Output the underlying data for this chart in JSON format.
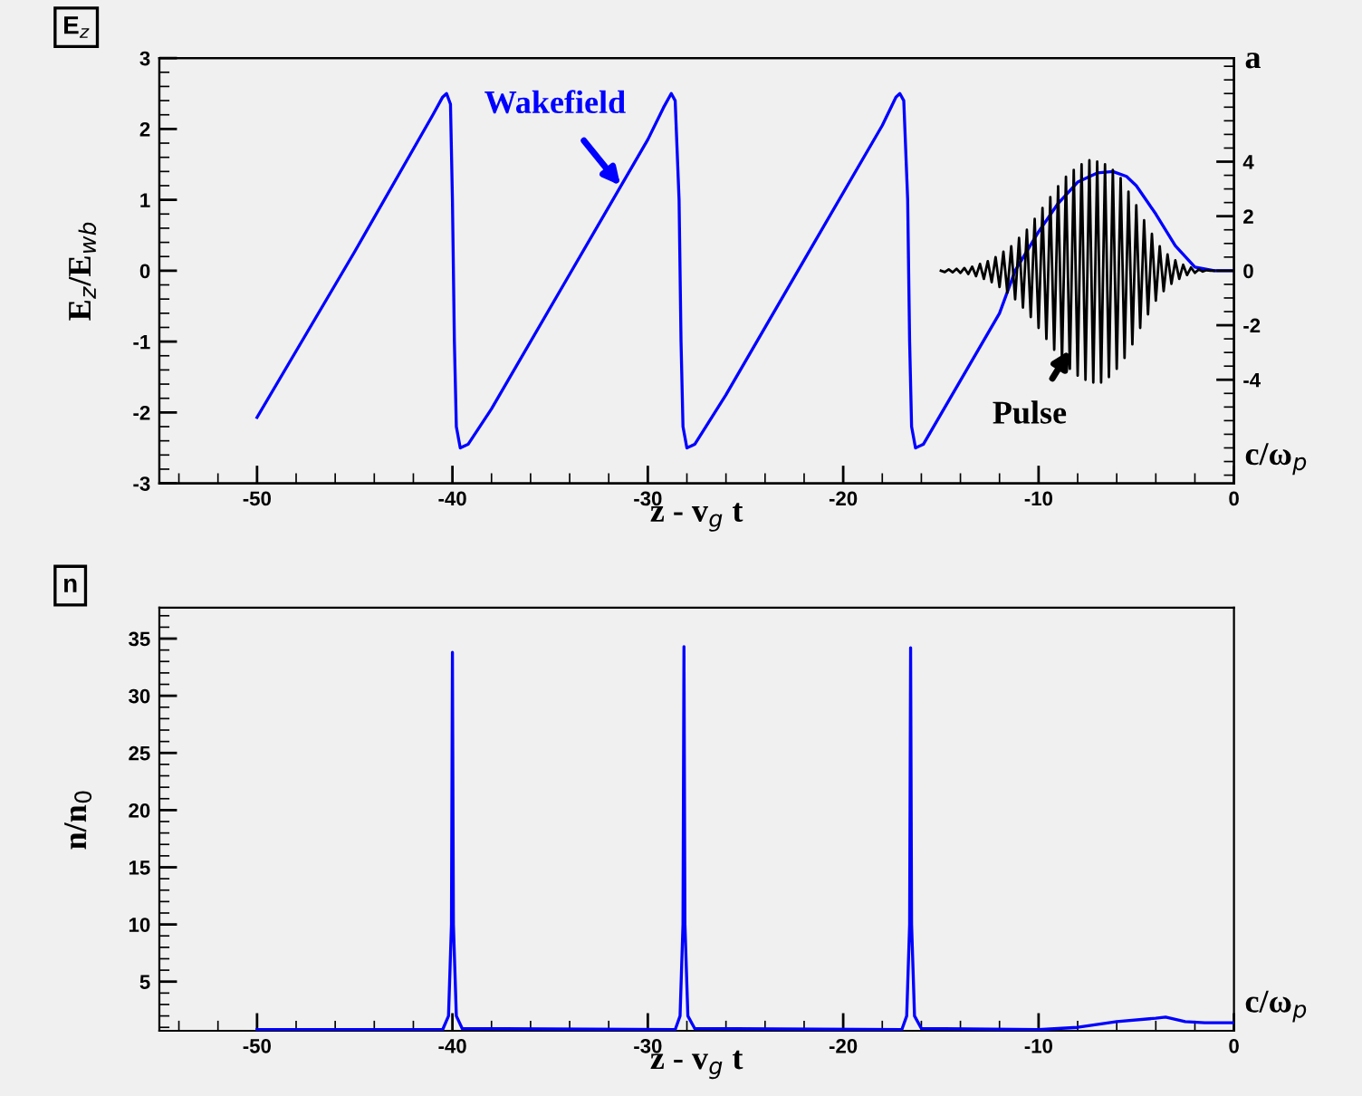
{
  "chart_data": [
    {
      "type": "line",
      "title": "E$_{z}$",
      "xlabel": "z - v$_{g}$ t",
      "ylabel": "E$_{z}$/E$_{wb}$",
      "y2label": "a",
      "xlim": [
        -55,
        0
      ],
      "xticks": [
        -50,
        -40,
        -30,
        -20,
        -10,
        0
      ],
      "ylim": [
        -3,
        3
      ],
      "yticks": [
        -3,
        -2,
        -1,
        0,
        1,
        2,
        3
      ],
      "y2lim": [
        -7.8,
        7.8
      ],
      "y2ticks": [
        -4,
        -2,
        0,
        2,
        4
      ],
      "annotations": [
        "c/ω$_{p}$",
        {
          "text": "Wakefield",
          "x": -31.4,
          "y": 1.2
        },
        {
          "text": "Pulse",
          "x": -8.4,
          "y": -1.12
        }
      ],
      "series": [
        {
          "color": "#0000ff",
          "x": [
            -50,
            -45,
            -41,
            -40.5,
            -40.3,
            -40.1,
            -40.0,
            -39.9,
            -39.8,
            -39.6,
            -39.2,
            -38,
            -34,
            -30,
            -29.2,
            -28.8,
            -28.6,
            -28.4,
            -28.3,
            -28.2,
            -28.0,
            -27.6,
            -26,
            -22,
            -18,
            -17.3,
            -17.1,
            -16.9,
            -16.7,
            -16.6,
            -16.5,
            -16.3,
            -15.9,
            -14,
            -12,
            -11.2,
            -10,
            -9,
            -8,
            -7,
            -6.2,
            -5.5,
            -5,
            -4,
            -3,
            -2,
            -1,
            0
          ],
          "values": [
            -2.07,
            0.27,
            2.2,
            2.45,
            2.5,
            2.35,
            1.0,
            -1.0,
            -2.2,
            -2.5,
            -2.45,
            -1.95,
            -0.05,
            1.85,
            2.3,
            2.5,
            2.4,
            1.0,
            -1.0,
            -2.2,
            -2.5,
            -2.45,
            -1.75,
            0.15,
            2.05,
            2.45,
            2.5,
            2.4,
            1.0,
            -1.0,
            -2.2,
            -2.5,
            -2.45,
            -1.55,
            -0.6,
            0,
            0.55,
            0.95,
            1.25,
            1.38,
            1.4,
            1.33,
            1.2,
            0.8,
            0.35,
            0.05,
            0,
            0
          ]
        },
        {
          "color": "#000000",
          "axis": "y2",
          "x": [
            -15,
            -14.8,
            -14.6,
            -14.4,
            -14.2,
            -14.0,
            -13.8,
            -13.6,
            -13.4,
            -13.2,
            -13.0,
            -12.8,
            -12.6,
            -12.4,
            -12.2,
            -12.0,
            -11.8,
            -11.6,
            -11.4,
            -11.2,
            -11.0,
            -10.8,
            -10.6,
            -10.4,
            -10.2,
            -10.0,
            -9.8,
            -9.6,
            -9.4,
            -9.2,
            -9.0,
            -8.8,
            -8.6,
            -8.4,
            -8.2,
            -8.0,
            -7.8,
            -7.6,
            -7.4,
            -7.2,
            -7.0,
            -6.8,
            -6.6,
            -6.4,
            -6.2,
            -6.0,
            -5.8,
            -5.6,
            -5.4,
            -5.2,
            -5.0,
            -4.8,
            -4.6,
            -4.4,
            -4.2,
            -4.0,
            -3.8,
            -3.6,
            -3.4,
            -3.2,
            -3.0,
            -2.8,
            -2.6,
            -2.4,
            -2.2,
            -2.0,
            -1.8,
            -1.6,
            -1.4,
            -1.2,
            -1.0
          ],
          "values": [
            0,
            -0.05,
            0.05,
            -0.06,
            0.07,
            -0.08,
            0.1,
            -0.12,
            0.15,
            -0.2,
            0.25,
            -0.3,
            0.35,
            -0.42,
            0.5,
            -0.6,
            0.7,
            -0.8,
            0.9,
            -1.05,
            1.2,
            -1.35,
            1.5,
            -1.7,
            1.9,
            -2.1,
            2.3,
            -2.5,
            2.7,
            -2.9,
            3.1,
            -3.3,
            3.45,
            -3.6,
            3.7,
            -3.85,
            3.9,
            -4.0,
            4.05,
            -4.1,
            4.0,
            -4.1,
            3.9,
            -3.9,
            3.7,
            -3.6,
            3.4,
            -3.2,
            2.9,
            -2.7,
            2.4,
            -2.1,
            1.85,
            -1.6,
            1.35,
            -1.1,
            0.9,
            -0.75,
            0.6,
            -0.48,
            0.38,
            -0.3,
            0.22,
            -0.16,
            0.12,
            -0.08,
            0.05,
            -0.03,
            0.02,
            0,
            0
          ]
        }
      ]
    },
    {
      "type": "line",
      "title": "n",
      "xlabel": "z - v$_{g}$ t",
      "ylabel": "n/n$_{0}$",
      "xlim": [
        -55,
        0
      ],
      "xticks": [
        -50,
        -40,
        -30,
        -20,
        -10,
        0
      ],
      "ylim": [
        0.7,
        37.7
      ],
      "yticks": [
        5,
        10,
        15,
        20,
        25,
        30,
        35
      ],
      "annotations": [
        "c/ω$_{p}$"
      ],
      "series": [
        {
          "color": "#0000ff",
          "x": [
            -50,
            -40.5,
            -40.2,
            -40.05,
            -40.0,
            -39.95,
            -39.8,
            -39.5,
            -28.6,
            -28.35,
            -28.2,
            -28.15,
            -28.1,
            -27.95,
            -27.6,
            -17.0,
            -16.75,
            -16.6,
            -16.55,
            -16.5,
            -16.35,
            -16.0,
            -10,
            -8,
            -6,
            -4,
            -3.5,
            -2.5,
            -1.5,
            0
          ],
          "values": [
            0.8,
            0.8,
            2,
            10,
            33.8,
            10,
            2,
            0.9,
            0.8,
            2,
            10,
            34.3,
            10,
            2,
            0.9,
            0.8,
            2,
            10,
            34.2,
            10,
            2,
            0.9,
            0.8,
            1.0,
            1.5,
            1.8,
            1.9,
            1.5,
            1.4,
            1.4
          ]
        }
      ]
    }
  ]
}
